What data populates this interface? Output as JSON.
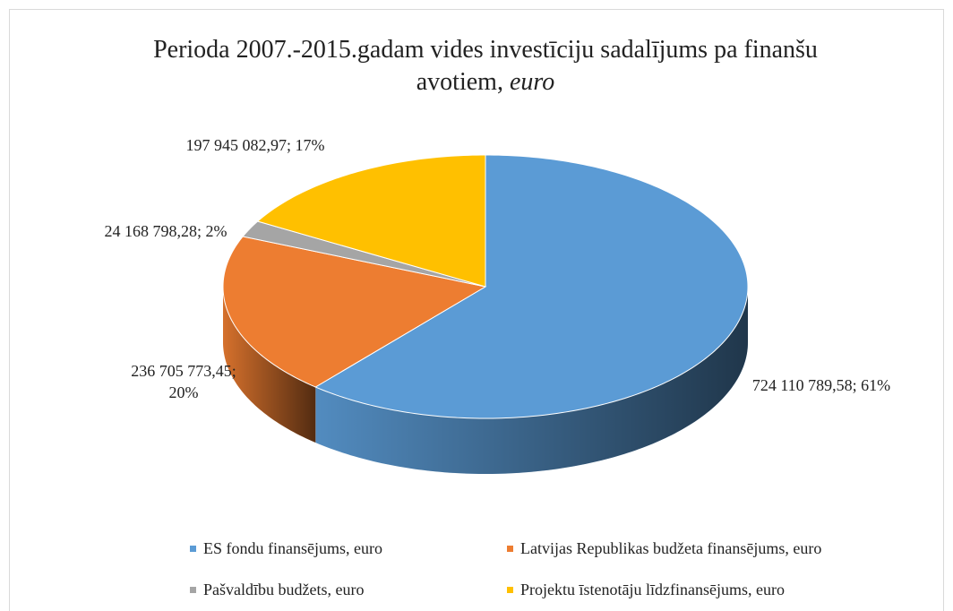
{
  "chart_data": {
    "type": "pie3d",
    "title": "Perioda 2007.-2015.gadam vides investīciju sadalījums pa finanšu avotiem,",
    "title_emphasis": "euro",
    "categories": [
      "ES fondu finansējums, euro",
      "Latvijas Republikas budžeta finansējums, euro",
      "Pašvaldību budžets, euro",
      "Projektu īstenotāju līdzfinansējums, euro"
    ],
    "values": [
      724110789.58,
      236705773.45,
      24168798.28,
      197945082.97
    ],
    "value_labels": [
      "724 110 789,58; 61%",
      "236 705 773,45; 20%",
      "24 168 798,28; 2%",
      "197 945 082,97; 17%"
    ],
    "colors": [
      "#5b9bd5",
      "#ed7d31",
      "#a5a5a5",
      "#ffc000"
    ],
    "legend": "bottom"
  }
}
